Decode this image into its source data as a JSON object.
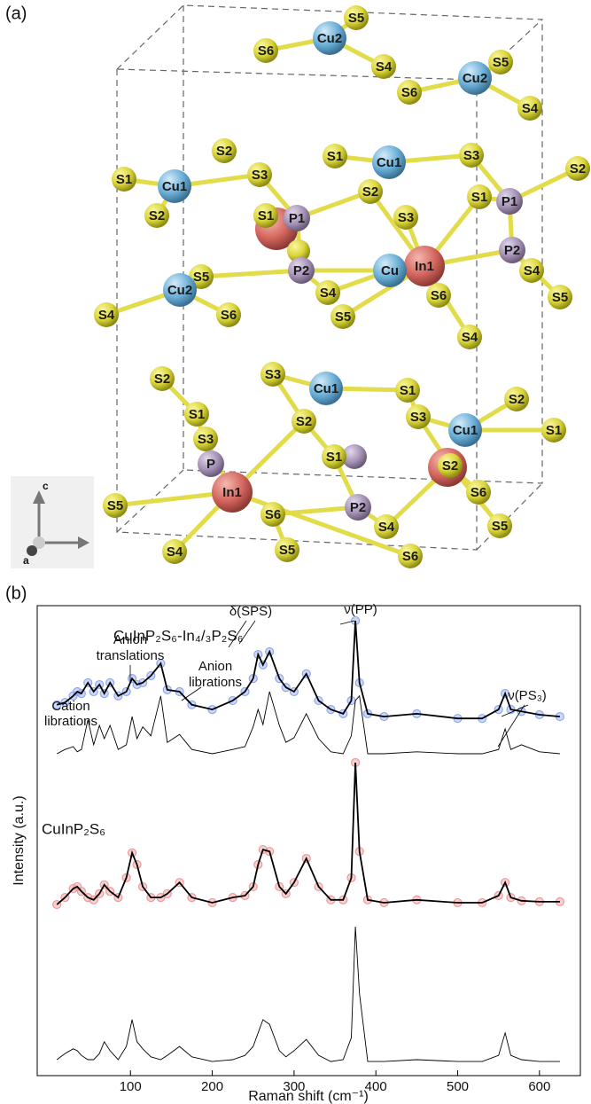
{
  "panels": [
    "(a)",
    "(b)"
  ],
  "structure": {
    "atoms": [
      "S5",
      "Cu2",
      "S6",
      "S4",
      "S5",
      "Cu2",
      "S6",
      "S4",
      "S2",
      "S1",
      "Cu1",
      "S3",
      "S2",
      "S1",
      "Cu1",
      "S3",
      "S1",
      "P1",
      "S2",
      "S2",
      "S1",
      "P1",
      "S3",
      "In1",
      "P2",
      "S4",
      "S5",
      "P2",
      "Cu",
      "S4",
      "S6",
      "Cu2",
      "S4",
      "S6",
      "S5",
      "S5",
      "S4",
      "S2",
      "S3",
      "Cu1",
      "S1",
      "S2",
      "S1",
      "S2",
      "S3",
      "Cu1",
      "S1",
      "S3",
      "S1",
      "S2",
      "P",
      "In1",
      "S6",
      "S5",
      "S6",
      "P2",
      "S4",
      "S5",
      "S4",
      "S5",
      "S6"
    ],
    "axes": [
      "c",
      "a"
    ]
  },
  "chart_data": {
    "type": "line",
    "xlabel": "Raman shift (cm⁻¹)",
    "ylabel": "Intensity (a.u.)",
    "xlim": [
      -14,
      650
    ],
    "xticks": [
      100,
      200,
      300,
      400,
      500,
      600
    ],
    "ylim": [
      0,
      100
    ],
    "line_color": "#000000",
    "annotations": [
      "Cation",
      "librations",
      "Anion",
      "translations",
      "Anion",
      "librations",
      "δ(SPS)",
      "ν(PP)",
      "ν(PS₃)"
    ],
    "x": [
      10,
      20,
      30,
      35,
      40,
      48,
      55,
      62,
      68,
      75,
      85,
      95,
      102,
      108,
      115,
      125,
      137,
      145,
      160,
      175,
      200,
      225,
      240,
      250,
      256,
      262,
      270,
      282,
      290,
      300,
      315,
      330,
      345,
      360,
      370,
      375,
      380,
      390,
      410,
      450,
      500,
      530,
      550,
      558,
      565,
      578,
      600,
      625
    ],
    "series": [
      {
        "name": "CuInP₂S₆-In₄/₃P₂S₆",
        "color": "#8fa8ee",
        "markers": true,
        "values": [
          78.9,
          79.4,
          80.8,
          81.7,
          81.3,
          83.6,
          81.7,
          83.2,
          81.3,
          83.6,
          80.8,
          81.7,
          84.5,
          83.2,
          83.6,
          85.1,
          87.7,
          82.1,
          81.7,
          78.9,
          77.9,
          79.8,
          81.7,
          84.5,
          89.6,
          87.4,
          90.2,
          84.5,
          82.6,
          81.7,
          85.5,
          79.8,
          77.9,
          77.0,
          79.8,
          96.8,
          83.6,
          77.0,
          76.4,
          77.0,
          76.0,
          76.0,
          77.9,
          81.3,
          77.9,
          77.5,
          76.8,
          76.4
        ]
      },
      {
        "color": "#000000",
        "markers": false,
        "values": [
          68.5,
          69.4,
          70.0,
          68.9,
          69.4,
          75.7,
          70.4,
          74.5,
          71.7,
          74.5,
          69.4,
          70.4,
          76.4,
          71.7,
          74.2,
          72.3,
          80.8,
          70.9,
          72.6,
          69.4,
          68.5,
          69.4,
          70.0,
          74.2,
          77.9,
          74.7,
          81.7,
          74.5,
          70.9,
          71.9,
          77.0,
          71.7,
          68.9,
          68.5,
          72.3,
          79.8,
          80.8,
          68.5,
          68.5,
          68.9,
          68.5,
          68.5,
          69.4,
          73.8,
          69.4,
          70.4,
          68.9,
          68.5
        ]
      },
      {
        "name": "CuInP₂S₆",
        "color": "#ee9a9a",
        "markers": true,
        "values": [
          36.4,
          37.9,
          39.8,
          40.2,
          39.2,
          37.9,
          37.4,
          38.7,
          40.6,
          39.2,
          37.9,
          42.1,
          47.4,
          44.9,
          40.2,
          37.9,
          37.9,
          38.7,
          41.1,
          37.9,
          36.8,
          37.9,
          38.3,
          40.2,
          44.9,
          48.1,
          47.7,
          40.2,
          38.7,
          41.1,
          46.2,
          40.2,
          37.4,
          37.4,
          42.1,
          66.6,
          47.7,
          37.4,
          36.8,
          37.4,
          36.8,
          36.8,
          38.3,
          41.1,
          37.9,
          37.2,
          37.0,
          37.0
        ]
      },
      {
        "color": "#000000",
        "markers": false,
        "values": [
          3.4,
          4.7,
          5.7,
          5.3,
          4.3,
          3.4,
          3.4,
          4.7,
          7.2,
          5.3,
          3.4,
          6.2,
          11.9,
          7.2,
          5.7,
          4.0,
          3.4,
          4.3,
          6.2,
          4.0,
          3.0,
          3.4,
          4.3,
          6.2,
          9.1,
          11.9,
          10.9,
          5.3,
          4.0,
          5.3,
          7.7,
          4.3,
          3.0,
          3.4,
          8.1,
          31.7,
          17.5,
          3.0,
          3.0,
          3.4,
          3.0,
          3.0,
          4.3,
          9.1,
          4.3,
          3.4,
          3.0,
          3.0
        ]
      }
    ]
  }
}
